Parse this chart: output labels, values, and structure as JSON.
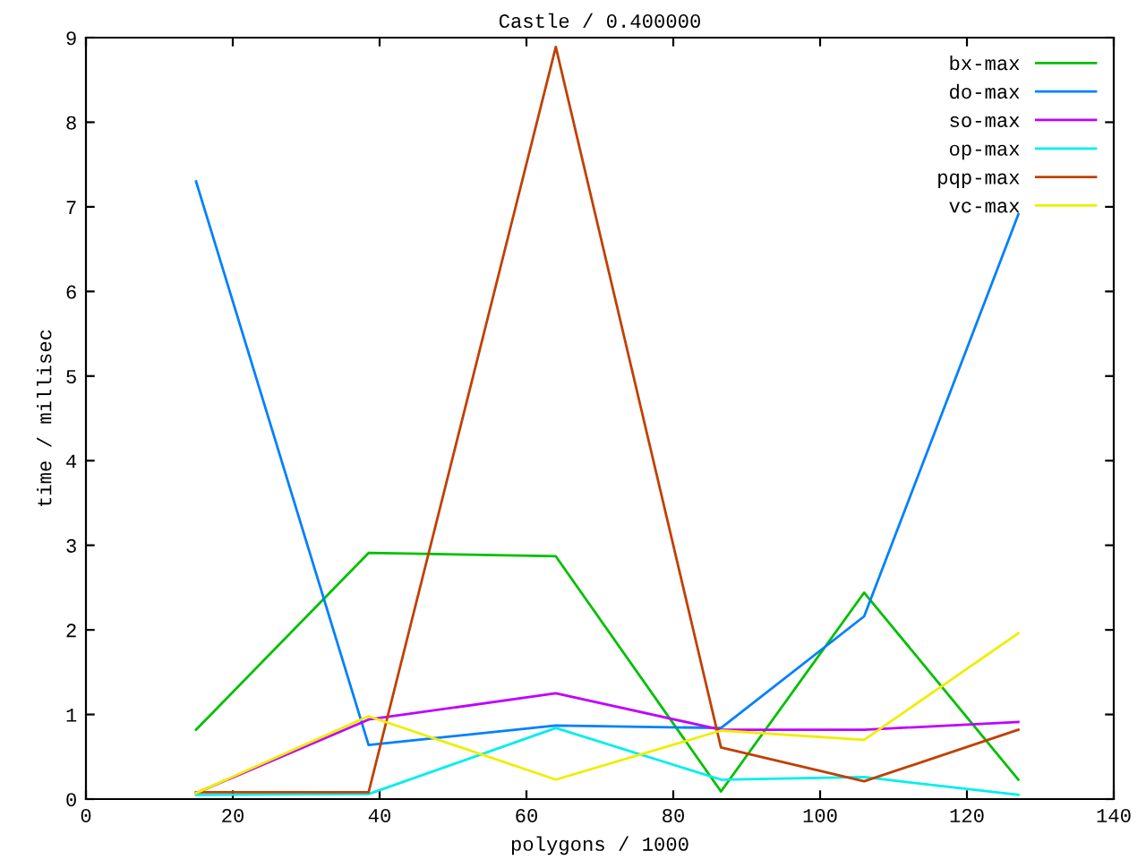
{
  "chart_data": {
    "type": "line",
    "title": "Castle / 0.400000",
    "xlabel": "polygons / 1000",
    "ylabel": "time / millisec",
    "x": [
      15,
      38.5,
      64,
      86.5,
      106,
      127
    ],
    "series": [
      {
        "name": "bx-max",
        "color": "#00c000",
        "values": [
          0.82,
          2.91,
          2.87,
          0.09,
          2.44,
          0.23
        ]
      },
      {
        "name": "do-max",
        "color": "#0080ff",
        "values": [
          7.3,
          0.64,
          0.87,
          0.84,
          2.16,
          6.91
        ]
      },
      {
        "name": "so-max",
        "color": "#c000ff",
        "values": [
          0.07,
          0.94,
          1.25,
          0.82,
          0.82,
          0.91
        ]
      },
      {
        "name": "op-max",
        "color": "#00eeee",
        "values": [
          0.05,
          0.06,
          0.84,
          0.23,
          0.26,
          0.05
        ]
      },
      {
        "name": "pqp-max",
        "color": "#c04000",
        "values": [
          0.08,
          0.08,
          8.89,
          0.61,
          0.21,
          0.82
        ]
      },
      {
        "name": "vc-max",
        "color": "#eeee00",
        "values": [
          0.07,
          0.98,
          0.23,
          0.81,
          0.7,
          1.96
        ]
      }
    ],
    "xlim": [
      0,
      140
    ],
    "xticks": [
      0,
      20,
      40,
      60,
      80,
      100,
      120,
      140
    ],
    "ylim": [
      0,
      9
    ],
    "yticks": [
      0,
      1,
      2,
      3,
      4,
      5,
      6,
      7,
      8,
      9
    ],
    "grid": false,
    "legend": "top right",
    "marker": "none",
    "line_style": "solid"
  }
}
